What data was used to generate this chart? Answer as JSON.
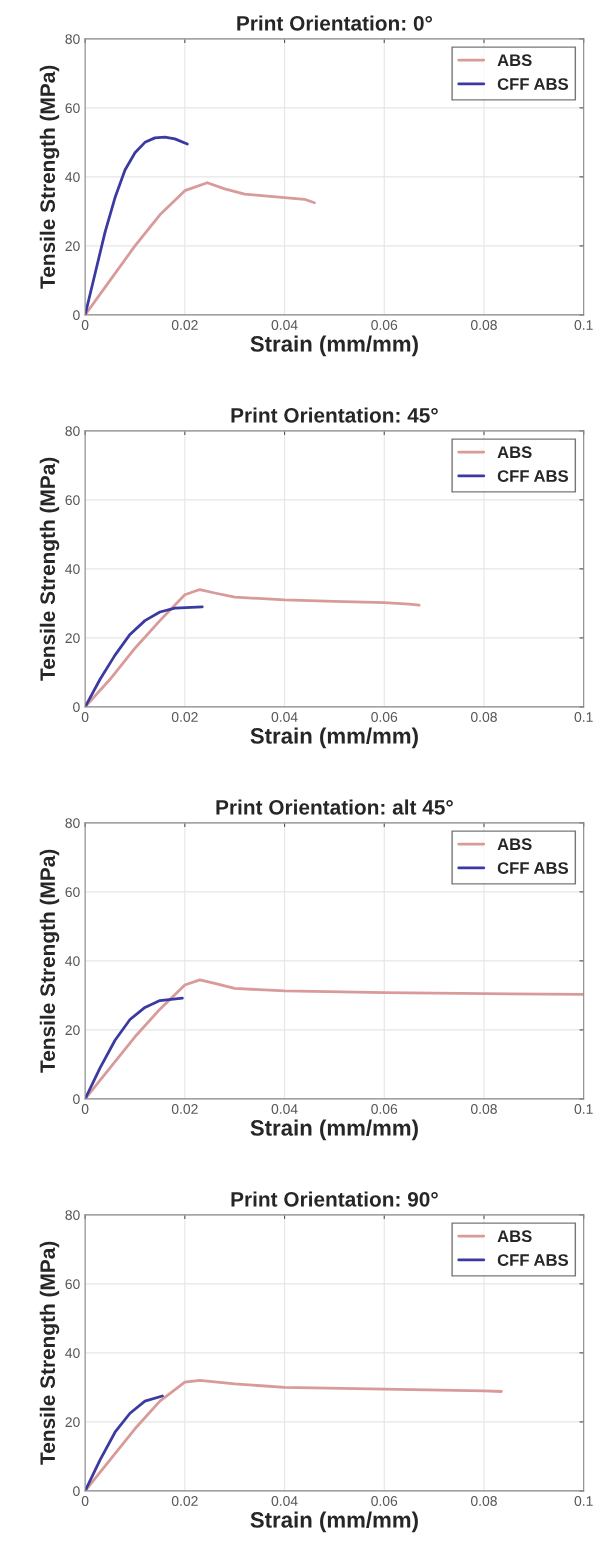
{
  "chart_data": [
    {
      "type": "line",
      "title": "Print Orientation: 0°",
      "xlabel": "Strain (mm/mm)",
      "ylabel": "Tensile Strength (MPa)",
      "xlim": [
        0,
        0.1
      ],
      "ylim": [
        0,
        80
      ],
      "xticks": [
        0,
        0.02,
        0.04,
        0.06,
        0.08,
        0.1
      ],
      "yticks": [
        0,
        20,
        40,
        60,
        80
      ],
      "grid": true,
      "legend": "top right",
      "series": [
        {
          "name": "ABS",
          "color": "#d99a9a",
          "x": [
            0,
            0.005,
            0.01,
            0.015,
            0.02,
            0.0245,
            0.028,
            0.032,
            0.036,
            0.04,
            0.044,
            0.046
          ],
          "values": [
            0,
            10,
            20,
            29,
            36,
            38.3,
            36.5,
            35,
            34.5,
            34,
            33.5,
            32.5
          ]
        },
        {
          "name": "CFF ABS",
          "color": "#3a3aa0",
          "x": [
            0,
            0.002,
            0.004,
            0.006,
            0.008,
            0.01,
            0.012,
            0.014,
            0.016,
            0.018,
            0.0205
          ],
          "values": [
            0,
            12,
            24,
            34,
            42,
            47,
            50,
            51.3,
            51.5,
            51,
            49.5
          ]
        }
      ]
    },
    {
      "type": "line",
      "title": "Print Orientation: 45°",
      "xlabel": "Strain (mm/mm)",
      "ylabel": "Tensile Strength (MPa)",
      "xlim": [
        0,
        0.1
      ],
      "ylim": [
        0,
        80
      ],
      "xticks": [
        0,
        0.02,
        0.04,
        0.06,
        0.08,
        0.1
      ],
      "yticks": [
        0,
        20,
        40,
        60,
        80
      ],
      "grid": true,
      "legend": "top right",
      "series": [
        {
          "name": "ABS",
          "color": "#d99a9a",
          "x": [
            0,
            0.005,
            0.01,
            0.015,
            0.02,
            0.023,
            0.026,
            0.03,
            0.04,
            0.05,
            0.06,
            0.065,
            0.067
          ],
          "values": [
            0,
            8,
            17,
            25,
            32.5,
            34,
            33,
            31.8,
            31,
            30.6,
            30.2,
            29.8,
            29.5
          ]
        },
        {
          "name": "CFF ABS",
          "color": "#3a3aa0",
          "x": [
            0,
            0.003,
            0.006,
            0.009,
            0.012,
            0.015,
            0.018,
            0.0235
          ],
          "values": [
            0,
            8,
            15,
            21,
            25,
            27.5,
            28.6,
            29
          ]
        }
      ]
    },
    {
      "type": "line",
      "title": "Print Orientation: alt 45°",
      "xlabel": "Strain (mm/mm)",
      "ylabel": "Tensile Strength (MPa)",
      "xlim": [
        0,
        0.1
      ],
      "ylim": [
        0,
        80
      ],
      "xticks": [
        0,
        0.02,
        0.04,
        0.06,
        0.08,
        0.1
      ],
      "yticks": [
        0,
        20,
        40,
        60,
        80
      ],
      "grid": true,
      "legend": "top right",
      "series": [
        {
          "name": "ABS",
          "color": "#d99a9a",
          "x": [
            0,
            0.005,
            0.01,
            0.015,
            0.02,
            0.023,
            0.026,
            0.03,
            0.04,
            0.06,
            0.08,
            0.1
          ],
          "values": [
            0,
            9,
            18,
            26,
            33,
            34.5,
            33.5,
            32,
            31.3,
            30.8,
            30.5,
            30.3
          ]
        },
        {
          "name": "CFF ABS",
          "color": "#3a3aa0",
          "x": [
            0,
            0.003,
            0.006,
            0.009,
            0.012,
            0.015,
            0.0195
          ],
          "values": [
            0,
            9,
            17,
            23,
            26.5,
            28.5,
            29.2
          ]
        }
      ]
    },
    {
      "type": "line",
      "title": "Print Orientation: 90°",
      "xlabel": "Strain (mm/mm)",
      "ylabel": "Tensile Strength (MPa)",
      "xlim": [
        0,
        0.1
      ],
      "ylim": [
        0,
        80
      ],
      "xticks": [
        0,
        0.02,
        0.04,
        0.06,
        0.08,
        0.1
      ],
      "yticks": [
        0,
        20,
        40,
        60,
        80
      ],
      "grid": true,
      "legend": "top right",
      "series": [
        {
          "name": "ABS",
          "color": "#d99a9a",
          "x": [
            0,
            0.005,
            0.01,
            0.015,
            0.02,
            0.023,
            0.03,
            0.04,
            0.06,
            0.08,
            0.0835
          ],
          "values": [
            0,
            9,
            18,
            26,
            31.5,
            32,
            31,
            30,
            29.5,
            29,
            28.8
          ]
        },
        {
          "name": "CFF ABS",
          "color": "#3a3aa0",
          "x": [
            0,
            0.003,
            0.006,
            0.009,
            0.012,
            0.0155
          ],
          "values": [
            0,
            9,
            17,
            22.5,
            26,
            27.5
          ]
        }
      ]
    }
  ]
}
